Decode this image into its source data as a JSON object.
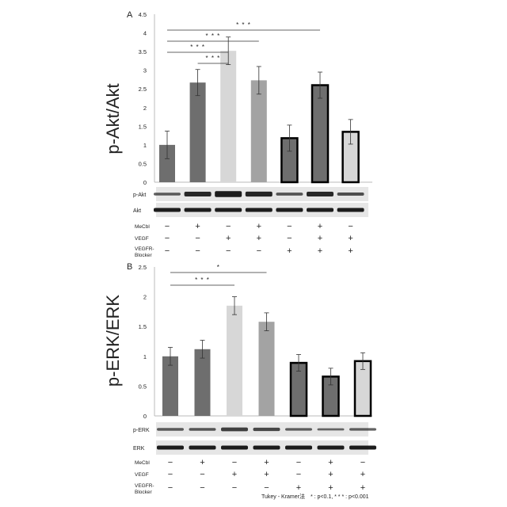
{
  "chart_data": [
    {
      "type": "bar",
      "panel_label": "A",
      "ylabel": "p-Akt/Akt",
      "ylim": [
        0,
        4.5
      ],
      "yticks": [
        "0",
        "0.5",
        "1",
        "1.5",
        "2",
        "2.5",
        "3",
        "3.5",
        "4",
        "4.5"
      ],
      "values": [
        1.0,
        2.67,
        3.52,
        2.73,
        1.18,
        2.6,
        1.35
      ],
      "errors": [
        0.37,
        0.35,
        0.37,
        0.37,
        0.35,
        0.35,
        0.33
      ],
      "bar_colors": [
        "#6e6e6e",
        "#6e6e6e",
        "#d7d7d7",
        "#a3a3a3",
        "#6e6e6e",
        "#6e6e6e",
        "#d7d7d7"
      ],
      "outlined": [
        false,
        false,
        false,
        false,
        true,
        true,
        true
      ],
      "significance": [
        {
          "from": 1,
          "to": 2,
          "label": "* * *"
        },
        {
          "from": 0,
          "to": 2,
          "label": "* * *"
        },
        {
          "from": 0,
          "to": 3,
          "label": "* * *"
        },
        {
          "from": 0,
          "to": 5,
          "label": "* * *"
        }
      ],
      "blots": [
        "p-Akt",
        "Akt"
      ],
      "treatments": [
        {
          "name": "MeCbl",
          "signs": [
            "−",
            "+",
            "−",
            "+",
            "−",
            "+",
            "−"
          ]
        },
        {
          "name": "VEGF",
          "signs": [
            "−",
            "−",
            "+",
            "+",
            "−",
            "+",
            "+"
          ]
        },
        {
          "name": "VEGFR-\nBlocker",
          "signs": [
            "−",
            "−",
            "−",
            "−",
            "+",
            "+",
            "+"
          ]
        }
      ]
    },
    {
      "type": "bar",
      "panel_label": "B",
      "ylabel": "p-ERK/ERK",
      "ylim": [
        0,
        2.5
      ],
      "yticks": [
        "0",
        "0.5",
        "1",
        "1.5",
        "2",
        "2.5"
      ],
      "values": [
        1.0,
        1.12,
        1.85,
        1.58,
        0.89,
        0.66,
        0.92
      ],
      "errors": [
        0.15,
        0.15,
        0.15,
        0.15,
        0.14,
        0.14,
        0.14
      ],
      "bar_colors": [
        "#6e6e6e",
        "#6e6e6e",
        "#d7d7d7",
        "#a3a3a3",
        "#6e6e6e",
        "#6e6e6e",
        "#d7d7d7"
      ],
      "outlined": [
        false,
        false,
        false,
        false,
        true,
        true,
        true
      ],
      "significance": [
        {
          "from": 0,
          "to": 2,
          "label": "* * *"
        },
        {
          "from": 0,
          "to": 3,
          "label": "*"
        }
      ],
      "blots": [
        "p-ERK",
        "ERK"
      ],
      "treatments": [
        {
          "name": "MeCbl",
          "signs": [
            "−",
            "+",
            "−",
            "+",
            "−",
            "+",
            "−"
          ]
        },
        {
          "name": "VEGF",
          "signs": [
            "−",
            "−",
            "+",
            "+",
            "−",
            "+",
            "+"
          ]
        },
        {
          "name": "VEGFR-\nBlocker",
          "signs": [
            "−",
            "−",
            "−",
            "−",
            "+",
            "+",
            "+"
          ]
        }
      ]
    }
  ],
  "footnote": "Tukey - Kramer法　* : p<0.1,  * * * : p<0.001"
}
